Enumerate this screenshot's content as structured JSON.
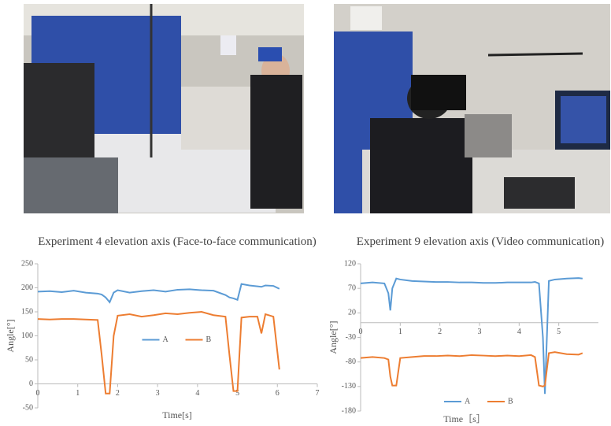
{
  "chart_data": [
    {
      "type": "line",
      "title": "Experiment 4 elevation axis (Face-to-face communication)",
      "x_label": "Time[s]",
      "y_label": "Angle[°]",
      "xlim": [
        0,
        7
      ],
      "xticks": [
        0,
        1,
        2,
        3,
        4,
        5,
        6,
        7
      ],
      "ylim": [
        -50,
        250
      ],
      "yticks": [
        -50,
        0,
        50,
        100,
        150,
        200,
        250
      ],
      "legend": "center",
      "grid": false,
      "x": [
        0,
        0.3,
        0.6,
        0.9,
        1.2,
        1.5,
        1.6,
        1.7,
        1.8,
        1.9,
        2.0,
        2.3,
        2.6,
        2.9,
        3.2,
        3.5,
        3.8,
        4.1,
        4.4,
        4.7,
        4.8,
        4.9,
        5.0,
        5.1,
        5.3,
        5.5,
        5.6,
        5.7,
        5.9,
        6.05
      ],
      "series": [
        {
          "name": "A",
          "color": "#5b9bd5",
          "values": [
            192,
            193,
            191,
            194,
            190,
            188,
            186,
            180,
            170,
            190,
            195,
            190,
            193,
            195,
            192,
            196,
            197,
            195,
            194,
            185,
            180,
            178,
            175,
            208,
            205,
            203,
            202,
            205,
            204,
            198
          ]
        },
        {
          "name": "B",
          "color": "#ed7d31",
          "values": [
            135,
            134,
            135,
            135,
            134,
            133,
            60,
            -20,
            -20,
            100,
            142,
            145,
            140,
            143,
            147,
            145,
            148,
            150,
            143,
            140,
            60,
            -15,
            -15,
            138,
            140,
            140,
            105,
            145,
            140,
            30
          ]
        }
      ]
    },
    {
      "type": "line",
      "title": "Experiment 9 elevation axis (Video communication)",
      "x_label": "Time［s］",
      "y_label": "Angle[°]",
      "xlim": [
        0,
        6
      ],
      "xticks": [
        0,
        1,
        2,
        3,
        4,
        5
      ],
      "ylim": [
        -180,
        120
      ],
      "yticks": [
        -180,
        -130,
        -80,
        -30,
        20,
        70,
        120
      ],
      "legend": "bottom",
      "grid": false,
      "x": [
        0,
        0.3,
        0.6,
        0.7,
        0.75,
        0.8,
        0.9,
        1.0,
        1.3,
        1.6,
        1.9,
        2.2,
        2.5,
        2.8,
        3.1,
        3.4,
        3.7,
        4.0,
        4.3,
        4.4,
        4.5,
        4.6,
        4.65,
        4.75,
        4.9,
        5.2,
        5.5,
        5.6
      ],
      "series": [
        {
          "name": "A",
          "color": "#5b9bd5",
          "values": [
            80,
            82,
            80,
            60,
            25,
            70,
            90,
            88,
            85,
            84,
            83,
            83,
            82,
            82,
            81,
            81,
            82,
            82,
            82,
            83,
            80,
            -30,
            -145,
            85,
            88,
            90,
            91,
            90
          ]
        },
        {
          "name": "B",
          "color": "#ed7d31",
          "values": [
            -72,
            -70,
            -72,
            -75,
            -110,
            -128,
            -128,
            -72,
            -70,
            -68,
            -68,
            -67,
            -68,
            -66,
            -67,
            -68,
            -67,
            -68,
            -66,
            -70,
            -128,
            -130,
            -128,
            -62,
            -60,
            -64,
            -65,
            -62
          ]
        }
      ]
    }
  ]
}
